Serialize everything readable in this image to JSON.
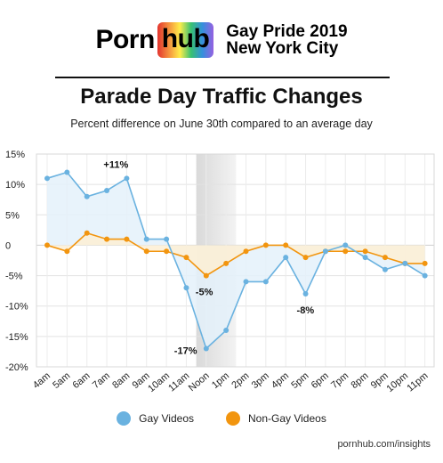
{
  "header": {
    "logo_left": "Porn",
    "logo_right": "hub",
    "event_line1": "Gay Pride 2019",
    "event_line2": "New York City"
  },
  "title": "Parade Day Traffic Changes",
  "subtitle": "Percent difference on June 30th compared to an average day",
  "source": "pornhub.com/insights",
  "colors": {
    "gay": "#6ab2e0",
    "gay_fill": "#e4f1fa",
    "nongay": "#f2950f",
    "nongay_fill": "#fdeed3",
    "highlight": "#e8e8e8"
  },
  "chart_data": {
    "type": "line",
    "title": "Parade Day Traffic Changes",
    "subtitle": "Percent difference on June 30th compared to an average day",
    "x": [
      "4am",
      "5am",
      "6am",
      "7am",
      "8am",
      "9am",
      "10am",
      "11am",
      "Noon",
      "1pm",
      "2pm",
      "3pm",
      "4pm",
      "5pm",
      "6pm",
      "7pm",
      "8pm",
      "9pm",
      "10pm",
      "11pm"
    ],
    "yticks": [
      "15%",
      "10%",
      "5%",
      "0",
      "-5%",
      "-10%",
      "-15%",
      "-20%"
    ],
    "ylim": [
      -20,
      15
    ],
    "grid": true,
    "highlight_categories": [
      "Noon",
      "1pm"
    ],
    "series": [
      {
        "name": "Gay Videos",
        "values": [
          11,
          12,
          8,
          9,
          11,
          1,
          1,
          -7,
          -17,
          -14,
          -6,
          -6,
          -2,
          -8,
          -1,
          0,
          -2,
          -4,
          -3,
          -5
        ]
      },
      {
        "name": "Non-Gay Videos",
        "values": [
          0,
          -1,
          2,
          1,
          1,
          -1,
          -1,
          -2,
          -5,
          -3,
          -1,
          0,
          0,
          -2,
          -1,
          -1,
          -1,
          -2,
          -3,
          -3
        ]
      }
    ],
    "annotations": [
      {
        "series": 0,
        "x": "8am",
        "text": "+11%"
      },
      {
        "series": 0,
        "x": "Noon",
        "text": "-17%"
      },
      {
        "series": 1,
        "x": "Noon",
        "text": "-5%"
      },
      {
        "series": 0,
        "x": "5pm",
        "text": "-8%"
      }
    ],
    "legend_position": "bottom"
  }
}
